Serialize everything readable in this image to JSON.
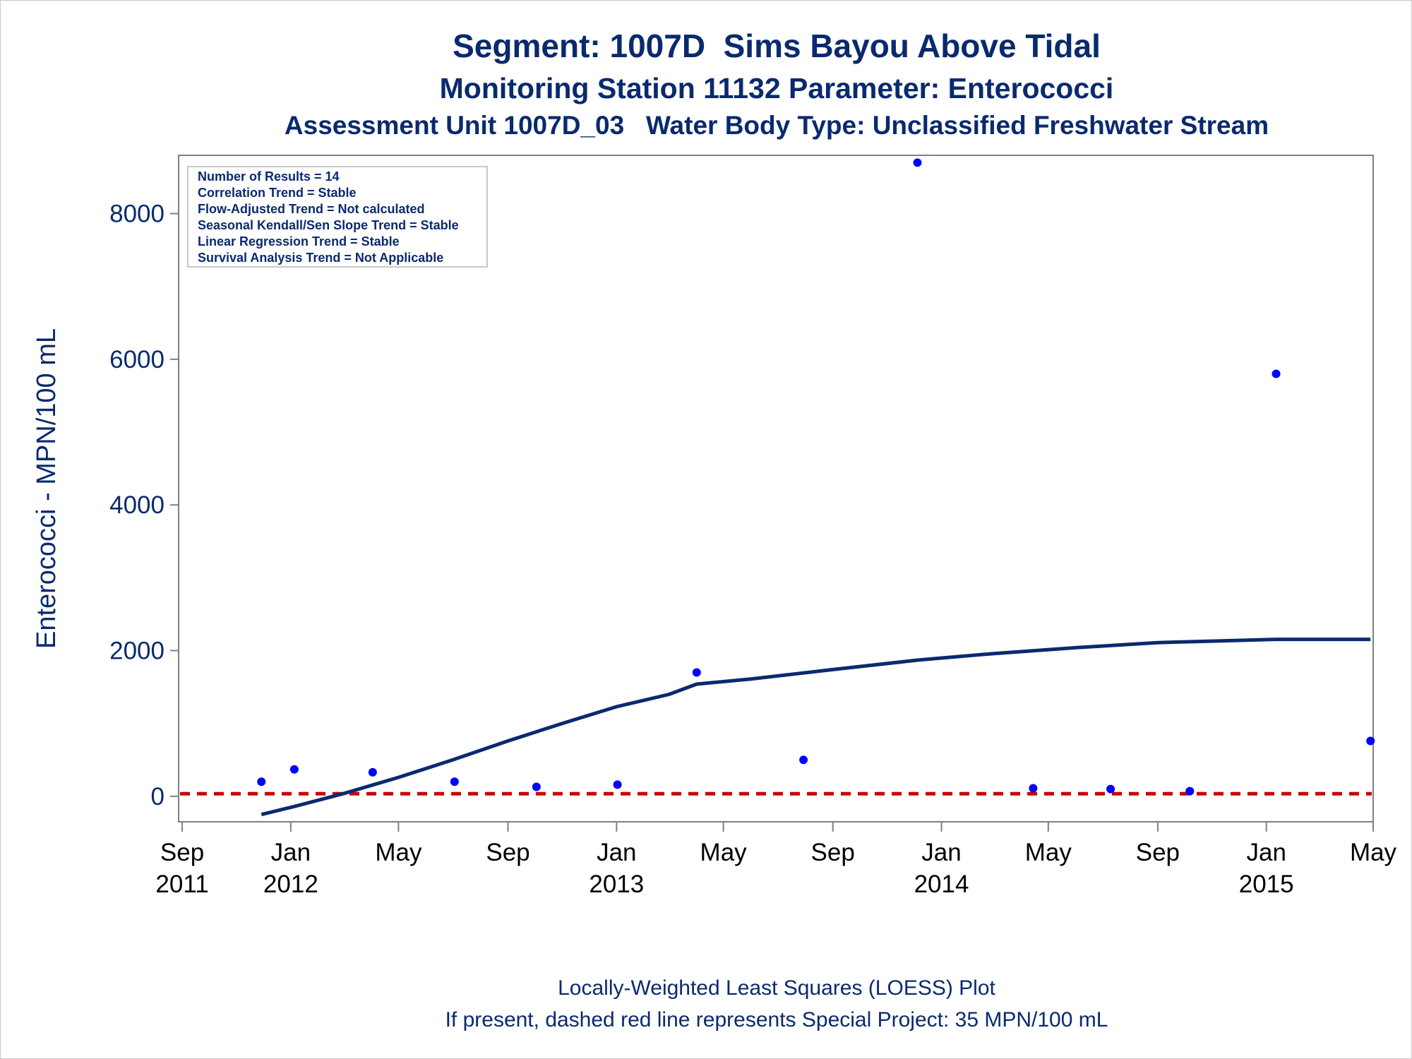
{
  "titles": {
    "line1": "Segment: 1007D  Sims Bayou Above Tidal",
    "line2": "Monitoring Station 11132 Parameter: Enterococci",
    "line3": "Assessment Unit 1007D_03   Water Body Type: Unclassified Freshwater Stream"
  },
  "footer": {
    "line1": "Locally-Weighted Least Squares (LOESS) Plot",
    "line2": "If present, dashed red line represents Special Project: 35 MPN/100 mL"
  },
  "stats_box": [
    "Number of Results = 14",
    "Correlation Trend = Stable",
    "Flow-Adjusted Trend = Not calculated",
    "Seasonal Kendall/Sen Slope Trend = Stable",
    "Linear Regression Trend = Stable",
    "Survival Analysis Trend = Not Applicable"
  ],
  "colors": {
    "points": "#0000ff",
    "loess": "#0a2a6e",
    "reference": "#cc0000",
    "axis": "#808080",
    "text": "#0a2a6e"
  },
  "chart_data": {
    "type": "scatter",
    "ylabel": "Enterococci - MPN/100 mL",
    "ylim": [
      -350,
      8800
    ],
    "xlim": [
      "2011-08-28",
      "2015-05-01"
    ],
    "yticks": [
      0,
      2000,
      4000,
      6000,
      8000
    ],
    "x_ticks": [
      {
        "date": "2011-09-01",
        "line1": "Sep",
        "line2": "2011"
      },
      {
        "date": "2012-01-01",
        "line1": "Jan",
        "line2": "2012"
      },
      {
        "date": "2012-05-01",
        "line1": "May",
        "line2": ""
      },
      {
        "date": "2012-09-01",
        "line1": "Sep",
        "line2": ""
      },
      {
        "date": "2013-01-01",
        "line1": "Jan",
        "line2": "2013"
      },
      {
        "date": "2013-05-01",
        "line1": "May",
        "line2": ""
      },
      {
        "date": "2013-09-01",
        "line1": "Sep",
        "line2": ""
      },
      {
        "date": "2014-01-01",
        "line1": "Jan",
        "line2": "2014"
      },
      {
        "date": "2014-05-01",
        "line1": "May",
        "line2": ""
      },
      {
        "date": "2014-09-01",
        "line1": "Sep",
        "line2": ""
      },
      {
        "date": "2015-01-01",
        "line1": "Jan",
        "line2": "2015"
      },
      {
        "date": "2015-05-01",
        "line1": "May",
        "line2": ""
      }
    ],
    "points": [
      {
        "date": "2011-11-29",
        "value": 200
      },
      {
        "date": "2012-01-05",
        "value": 370
      },
      {
        "date": "2012-04-02",
        "value": 330
      },
      {
        "date": "2012-07-03",
        "value": 200
      },
      {
        "date": "2012-10-03",
        "value": 130
      },
      {
        "date": "2013-01-02",
        "value": 160
      },
      {
        "date": "2013-04-01",
        "value": 1700
      },
      {
        "date": "2013-07-30",
        "value": 500
      },
      {
        "date": "2013-12-05",
        "value": 8700
      },
      {
        "date": "2014-04-14",
        "value": 110
      },
      {
        "date": "2014-07-10",
        "value": 100
      },
      {
        "date": "2014-10-07",
        "value": 70
      },
      {
        "date": "2015-01-12",
        "value": 5800
      },
      {
        "date": "2015-04-28",
        "value": 760
      }
    ],
    "loess": [
      {
        "date": "2011-11-29",
        "value": -250
      },
      {
        "date": "2012-01-05",
        "value": -140
      },
      {
        "date": "2012-03-01",
        "value": 40
      },
      {
        "date": "2012-05-01",
        "value": 260
      },
      {
        "date": "2012-07-01",
        "value": 500
      },
      {
        "date": "2012-09-01",
        "value": 760
      },
      {
        "date": "2012-11-01",
        "value": 1000
      },
      {
        "date": "2013-01-01",
        "value": 1230
      },
      {
        "date": "2013-03-01",
        "value": 1400
      },
      {
        "date": "2013-04-01",
        "value": 1540
      },
      {
        "date": "2013-06-01",
        "value": 1610
      },
      {
        "date": "2013-09-01",
        "value": 1740
      },
      {
        "date": "2013-12-05",
        "value": 1870
      },
      {
        "date": "2014-03-01",
        "value": 1960
      },
      {
        "date": "2014-06-01",
        "value": 2040
      },
      {
        "date": "2014-09-01",
        "value": 2110
      },
      {
        "date": "2014-11-01",
        "value": 2130
      },
      {
        "date": "2015-01-12",
        "value": 2155
      },
      {
        "date": "2015-04-28",
        "value": 2155
      }
    ],
    "reference_line": {
      "value": 35,
      "style": "dashed"
    },
    "grid": false
  }
}
